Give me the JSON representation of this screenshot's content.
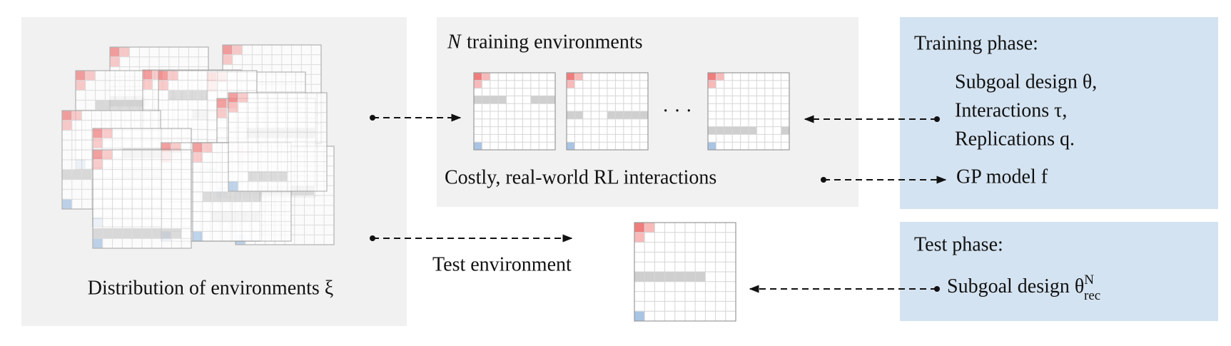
{
  "left": {
    "caption": "Distribution of environments ξ"
  },
  "middle": {
    "title_var": "N",
    "title_text": "training environments",
    "ellipsis": "· · ·",
    "caption": "Costly, real-world RL interactions"
  },
  "test": {
    "label": "Test environment"
  },
  "training_phase": {
    "title": "Training phase:",
    "items": [
      "Subgoal design θ,",
      "Interactions τ,",
      "Replications q."
    ],
    "model": "GP model f"
  },
  "test_phase": {
    "title": "Test phase:",
    "item": "Subgoal design θ",
    "item_sup": "N",
    "item_sub": "rec"
  }
}
